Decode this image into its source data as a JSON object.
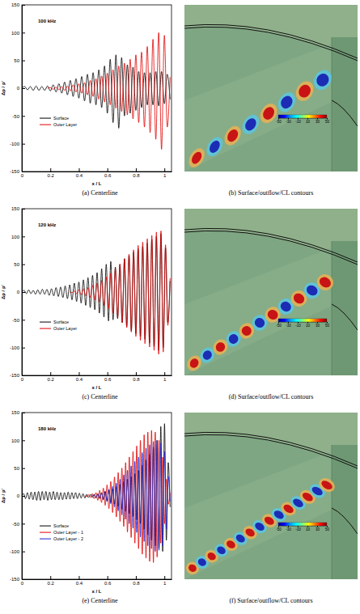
{
  "chart_data": [
    {
      "type": "line",
      "annotation": "100 kHz",
      "caption": "(a) Centerline",
      "x_label": "x / L",
      "y_label": "Δp / p'",
      "xlim": [
        0,
        1.05
      ],
      "xticks": [
        0,
        0.2,
        0.4,
        0.6,
        0.8,
        1
      ],
      "ylim": [
        -150,
        150
      ],
      "yticks": [
        -150,
        -100,
        -50,
        0,
        50,
        100,
        150
      ],
      "grid": false,
      "legend": "lower left",
      "x": [
        0,
        0.02,
        0.04,
        0.06,
        0.08,
        0.1,
        0.12,
        0.14,
        0.16,
        0.18,
        0.2,
        0.22,
        0.24,
        0.26,
        0.28,
        0.3,
        0.32,
        0.34,
        0.36,
        0.38,
        0.4,
        0.42,
        0.44,
        0.46,
        0.48,
        0.5,
        0.52,
        0.54,
        0.56,
        0.58,
        0.6,
        0.62,
        0.64,
        0.66,
        0.68,
        0.7,
        0.72,
        0.74,
        0.76,
        0.78,
        0.8,
        0.82,
        0.84,
        0.86,
        0.88,
        0.9,
        0.92,
        0.94,
        0.96,
        0.98,
        1,
        1.02,
        1.04
      ],
      "series": [
        {
          "name": "Surface",
          "color": "#000000",
          "values": [
            0,
            3,
            -3,
            3,
            -4,
            4,
            -4,
            3,
            -4,
            4,
            -5,
            6,
            -7,
            8,
            -9,
            11,
            -12,
            14,
            -15,
            17,
            -18,
            21,
            -23,
            25,
            -27,
            28,
            -30,
            33,
            -35,
            40,
            -45,
            52,
            -62,
            60,
            -72,
            55,
            -50,
            42,
            -45,
            38,
            -40,
            30,
            -35,
            28,
            -30,
            28,
            -30,
            30,
            -32,
            30,
            -28,
            25,
            -20
          ]
        },
        {
          "name": "Outer Layer",
          "color": "#e00000",
          "values": [
            null,
            null,
            null,
            null,
            null,
            null,
            null,
            null,
            null,
            0,
            1,
            -2,
            2,
            -3,
            3,
            -4,
            4,
            -5,
            6,
            -7,
            8,
            -9,
            10,
            -12,
            14,
            -15,
            17,
            -20,
            22,
            -25,
            27,
            -30,
            33,
            -36,
            40,
            -42,
            45,
            -48,
            52,
            -55,
            60,
            -62,
            65,
            -70,
            75,
            -80,
            88,
            -92,
            100,
            -110,
            95,
            -70,
            20
          ]
        }
      ]
    },
    {
      "type": "contour",
      "caption": "(b) Surface/outflow/CL contours",
      "colorbar": {
        "range": [
          -50,
          50
        ],
        "ticks": [
          -50,
          -30,
          -10,
          10,
          30,
          50
        ]
      }
    },
    {
      "type": "line",
      "annotation": "120 kHz",
      "caption": "(c) Centerline",
      "x_label": "x / L",
      "y_label": "Δp / p'",
      "xlim": [
        0,
        1.05
      ],
      "xticks": [
        0,
        0.2,
        0.4,
        0.6,
        0.8,
        1
      ],
      "ylim": [
        -150,
        150
      ],
      "yticks": [
        -150,
        -100,
        -50,
        0,
        50,
        100,
        150
      ],
      "grid": false,
      "legend": "lower left",
      "x": [
        0,
        0.016,
        0.032,
        0.048,
        0.064,
        0.08,
        0.096,
        0.112,
        0.128,
        0.144,
        0.16,
        0.176,
        0.192,
        0.208,
        0.224,
        0.24,
        0.256,
        0.272,
        0.288,
        0.304,
        0.32,
        0.336,
        0.352,
        0.368,
        0.384,
        0.4,
        0.416,
        0.432,
        0.448,
        0.464,
        0.48,
        0.496,
        0.512,
        0.528,
        0.544,
        0.56,
        0.576,
        0.592,
        0.608,
        0.624,
        0.64,
        0.656,
        0.672,
        0.688,
        0.704,
        0.72,
        0.736,
        0.752,
        0.768,
        0.784,
        0.8,
        0.816,
        0.832,
        0.848,
        0.864,
        0.88,
        0.896,
        0.912,
        0.928,
        0.944,
        0.96,
        0.976,
        0.992,
        1.008,
        1.024,
        1.04
      ],
      "series": [
        {
          "name": "Surface",
          "color": "#000000",
          "values": [
            0,
            3,
            -3,
            4,
            -3,
            3,
            -4,
            4,
            -4,
            5,
            -4,
            5,
            -6,
            6,
            -7,
            8,
            -8,
            9,
            -10,
            11,
            -12,
            13,
            -14,
            16,
            -17,
            18,
            -20,
            22,
            -24,
            26,
            -28,
            30,
            -32,
            35,
            -38,
            42,
            -45,
            50,
            -52,
            55,
            -50,
            45,
            -48,
            50,
            -55,
            60,
            -62,
            66,
            -70,
            72,
            -75,
            78,
            -80,
            82,
            -85,
            88,
            -92,
            95,
            -98,
            100,
            -105,
            105,
            -100,
            80,
            -55,
            20
          ]
        },
        {
          "name": "Outer Layer",
          "color": "#e00000",
          "values": [
            null,
            null,
            null,
            null,
            null,
            null,
            null,
            null,
            null,
            null,
            null,
            null,
            null,
            null,
            null,
            null,
            null,
            null,
            null,
            null,
            null,
            0,
            -1,
            2,
            -3,
            4,
            -5,
            6,
            -7,
            8,
            -10,
            12,
            -14,
            16,
            -18,
            21,
            -24,
            27,
            -30,
            34,
            -38,
            42,
            -46,
            50,
            -55,
            60,
            -64,
            68,
            -72,
            76,
            -80,
            84,
            -87,
            90,
            -93,
            96,
            -99,
            102,
            -105,
            108,
            -112,
            110,
            -108,
            85,
            -60,
            25
          ]
        }
      ]
    },
    {
      "type": "contour",
      "caption": "(d) Surface/outflow/CL contours",
      "colorbar": {
        "range": [
          -50,
          50
        ],
        "ticks": [
          -50,
          -30,
          -10,
          10,
          30,
          50
        ]
      }
    },
    {
      "type": "line",
      "annotation": "180 kHz",
      "caption": "(e) Centerline",
      "x_label": "x / L",
      "y_label": "Δp / p'",
      "xlim": [
        0,
        1.05
      ],
      "xticks": [
        0,
        0.2,
        0.4,
        0.6,
        0.8,
        1
      ],
      "ylim": [
        -150,
        150
      ],
      "yticks": [
        -150,
        -100,
        -50,
        0,
        50,
        100,
        150
      ],
      "grid": false,
      "legend": "lower left",
      "x": [
        0,
        0.013,
        0.026,
        0.039,
        0.052,
        0.065,
        0.078,
        0.091,
        0.104,
        0.117,
        0.13,
        0.143,
        0.156,
        0.169,
        0.182,
        0.195,
        0.208,
        0.221,
        0.234,
        0.247,
        0.26,
        0.273,
        0.286,
        0.299,
        0.312,
        0.325,
        0.338,
        0.351,
        0.364,
        0.377,
        0.39,
        0.403,
        0.416,
        0.429,
        0.442,
        0.455,
        0.468,
        0.481,
        0.494,
        0.507,
        0.52,
        0.533,
        0.546,
        0.559,
        0.572,
        0.585,
        0.598,
        0.611,
        0.624,
        0.637,
        0.65,
        0.663,
        0.676,
        0.689,
        0.702,
        0.715,
        0.728,
        0.741,
        0.754,
        0.767,
        0.78,
        0.793,
        0.806,
        0.819,
        0.832,
        0.845,
        0.858,
        0.871,
        0.884,
        0.897,
        0.91,
        0.923,
        0.936,
        0.949,
        0.962,
        0.975,
        0.988,
        1.001,
        1.014,
        1.027,
        1.04
      ],
      "series": [
        {
          "name": "Surface",
          "color": "#000000",
          "values": [
            0,
            4,
            -5,
            6,
            -6,
            7,
            -7,
            7,
            -8,
            8,
            -8,
            8,
            -7,
            8,
            -8,
            7,
            -7,
            8,
            -7,
            7,
            -7,
            6,
            -7,
            6,
            -6,
            7,
            -6,
            6,
            -5,
            6,
            -5,
            5,
            -4,
            4,
            -4,
            3,
            -3,
            3,
            -3,
            3,
            -4,
            4,
            -5,
            6,
            -7,
            8,
            -9,
            10,
            -12,
            13,
            -15,
            17,
            -19,
            21,
            -24,
            26,
            -28,
            30,
            -32,
            35,
            -37,
            40,
            -43,
            46,
            -50,
            55,
            -60,
            65,
            -70,
            75,
            -80,
            88,
            -90,
            100,
            -95,
            125,
            -100,
            130,
            -80,
            60,
            -20
          ]
        },
        {
          "name": "Outer Layer - 1",
          "color": "#e00000",
          "values": [
            null,
            null,
            null,
            null,
            null,
            null,
            null,
            null,
            null,
            null,
            null,
            null,
            null,
            null,
            null,
            null,
            null,
            null,
            null,
            null,
            null,
            null,
            null,
            null,
            null,
            null,
            null,
            null,
            null,
            null,
            null,
            null,
            null,
            null,
            0,
            -1,
            2,
            -3,
            4,
            -5,
            6,
            -8,
            10,
            -12,
            14,
            -17,
            20,
            -23,
            26,
            -30,
            34,
            -38,
            42,
            -46,
            50,
            -55,
            60,
            -65,
            70,
            -75,
            80,
            -85,
            90,
            -95,
            100,
            -105,
            110,
            -112,
            115,
            -118,
            118,
            -120,
            115,
            -110,
            100,
            -85,
            70,
            -50,
            30,
            -15,
            5
          ]
        },
        {
          "name": "Outer Layer - 2",
          "color": "#2020d0",
          "values": [
            null,
            null,
            null,
            null,
            null,
            null,
            null,
            null,
            null,
            null,
            null,
            null,
            null,
            null,
            null,
            null,
            null,
            null,
            null,
            null,
            null,
            null,
            null,
            null,
            null,
            null,
            null,
            null,
            null,
            null,
            null,
            null,
            null,
            null,
            null,
            null,
            null,
            null,
            0,
            1,
            -2,
            3,
            -4,
            5,
            -6,
            8,
            -10,
            12,
            -14,
            17,
            -20,
            23,
            -27,
            30,
            -34,
            38,
            -42,
            46,
            -50,
            54,
            -58,
            62,
            -66,
            70,
            -74,
            78,
            -82,
            86,
            -90,
            92,
            -95,
            98,
            -100,
            100,
            -98,
            95,
            -90,
            80,
            -60,
            35,
            -10
          ]
        }
      ]
    },
    {
      "type": "contour",
      "caption": "(f) Surface/outflow/CL contours",
      "colorbar": {
        "range": [
          -50,
          50
        ],
        "ticks": [
          -50,
          -30,
          -10,
          10,
          30,
          50
        ]
      }
    }
  ]
}
